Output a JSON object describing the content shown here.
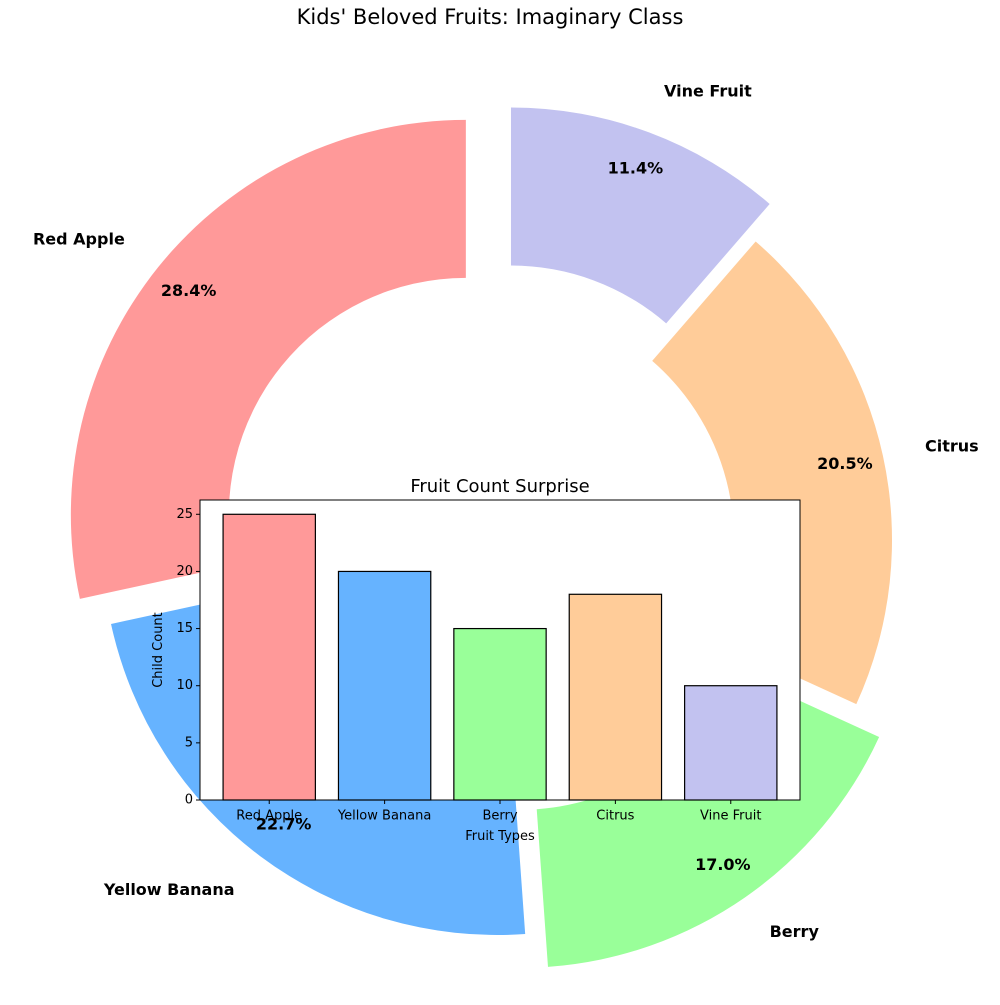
{
  "chart_data": [
    {
      "type": "pie",
      "style": "donut",
      "title": "Kids' Beloved Fruits: Imaginary Class",
      "start_angle_deg": 90,
      "direction": "counterclockwise",
      "slices": [
        {
          "label": "Red Apple",
          "value": 25,
          "percent": "28.4%",
          "color": "#ff9999",
          "exploded": true
        },
        {
          "label": "Yellow Banana",
          "value": 20,
          "percent": "22.7%",
          "color": "#66b3ff",
          "exploded": false
        },
        {
          "label": "Berry",
          "value": 15,
          "percent": "17.0%",
          "color": "#99ff99",
          "exploded": true
        },
        {
          "label": "Citrus",
          "value": 18,
          "percent": "20.5%",
          "color": "#ffcc99",
          "exploded": false
        },
        {
          "label": "Vine Fruit",
          "value": 10,
          "percent": "11.4%",
          "color": "#c2c2f0",
          "exploded": true
        }
      ]
    },
    {
      "type": "bar",
      "title": "Fruit Count Surprise",
      "xlabel": "Fruit Types",
      "ylabel": "Child Count",
      "categories": [
        "Red Apple",
        "Yellow Banana",
        "Berry",
        "Citrus",
        "Vine Fruit"
      ],
      "values": [
        25,
        20,
        15,
        18,
        10
      ],
      "colors": [
        "#ff9999",
        "#66b3ff",
        "#99ff99",
        "#ffcc99",
        "#c2c2f0"
      ],
      "ylim": [
        0,
        26.25
      ],
      "yticks": [
        0,
        5,
        10,
        15,
        20,
        25
      ],
      "grid": false
    }
  ]
}
